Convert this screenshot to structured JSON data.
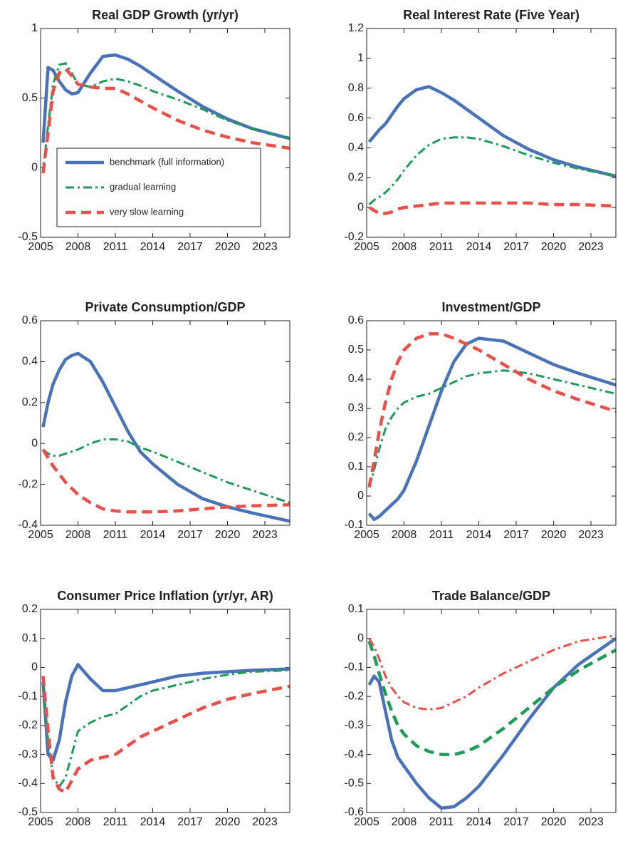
{
  "chart_data": [
    {
      "type": "line",
      "title": "Real GDP Growth (yr/yr)",
      "legend": "lower left",
      "x": [
        2005.2,
        2005.6,
        2006,
        2006.5,
        2007,
        2007.5,
        2008,
        2009,
        2010,
        2011,
        2012,
        2013,
        2014,
        2016,
        2018,
        2020,
        2022,
        2025
      ],
      "xlim": [
        2005,
        2025
      ],
      "xticks": [
        2005,
        2008,
        2011,
        2014,
        2017,
        2020,
        2023
      ],
      "ylim": [
        -0.5,
        1
      ],
      "yticks": [
        -0.5,
        0,
        0.5,
        1
      ],
      "series": [
        {
          "name": "benchmark (full information)",
          "color": "#4a72b8",
          "dash": "solid",
          "values": [
            0.18,
            0.72,
            0.7,
            0.62,
            0.56,
            0.53,
            0.54,
            0.68,
            0.8,
            0.81,
            0.78,
            0.73,
            0.67,
            0.55,
            0.44,
            0.35,
            0.28,
            0.21
          ]
        },
        {
          "name": "gradual learning",
          "color": "#1f9a5a",
          "dash": "dashdot",
          "values": [
            -0.02,
            0.3,
            0.6,
            0.74,
            0.75,
            0.68,
            0.6,
            0.58,
            0.62,
            0.64,
            0.62,
            0.59,
            0.55,
            0.49,
            0.42,
            0.34,
            0.28,
            0.21
          ]
        },
        {
          "name": "very slow learning",
          "color": "#e8504a",
          "dash": "dashed",
          "values": [
            -0.04,
            0.25,
            0.55,
            0.68,
            0.71,
            0.66,
            0.6,
            0.58,
            0.57,
            0.57,
            0.53,
            0.48,
            0.43,
            0.34,
            0.27,
            0.22,
            0.18,
            0.14
          ]
        }
      ]
    },
    {
      "type": "line",
      "title": "Real Interest Rate (Five Year)",
      "x": [
        2005.2,
        2005.6,
        2006,
        2006.5,
        2007,
        2007.5,
        2008,
        2009,
        2010,
        2011,
        2012,
        2013,
        2014,
        2016,
        2018,
        2020,
        2022,
        2025
      ],
      "xlim": [
        2005,
        2025
      ],
      "xticks": [
        2005,
        2008,
        2011,
        2014,
        2017,
        2020,
        2023
      ],
      "ylim": [
        -0.2,
        1.2
      ],
      "yticks": [
        -0.2,
        0,
        0.2,
        0.4,
        0.6,
        0.8,
        1,
        1.2
      ],
      "series": [
        {
          "color": "#4a72b8",
          "dash": "solid",
          "values": [
            0.44,
            0.48,
            0.52,
            0.56,
            0.62,
            0.68,
            0.73,
            0.79,
            0.81,
            0.77,
            0.72,
            0.66,
            0.6,
            0.48,
            0.39,
            0.32,
            0.27,
            0.21
          ]
        },
        {
          "color": "#1f9a5a",
          "dash": "dashdot",
          "values": [
            0.02,
            0.05,
            0.07,
            0.1,
            0.14,
            0.19,
            0.25,
            0.35,
            0.42,
            0.46,
            0.47,
            0.47,
            0.46,
            0.41,
            0.35,
            0.3,
            0.26,
            0.21
          ]
        },
        {
          "color": "#e8504a",
          "dash": "dashed",
          "values": [
            0,
            -0.02,
            -0.04,
            -0.04,
            -0.03,
            -0.01,
            0,
            0.01,
            0.02,
            0.03,
            0.03,
            0.03,
            0.03,
            0.03,
            0.03,
            0.02,
            0.02,
            0.01
          ]
        }
      ]
    },
    {
      "type": "line",
      "title": "Private Consumption/GDP",
      "x": [
        2005.2,
        2005.6,
        2006,
        2006.5,
        2007,
        2007.5,
        2008,
        2009,
        2010,
        2011,
        2012,
        2013,
        2014,
        2016,
        2018,
        2020,
        2022,
        2025
      ],
      "xlim": [
        2005,
        2025
      ],
      "xticks": [
        2005,
        2008,
        2011,
        2014,
        2017,
        2020,
        2023
      ],
      "ylim": [
        -0.4,
        0.6
      ],
      "yticks": [
        -0.4,
        -0.2,
        0,
        0.2,
        0.4,
        0.6
      ],
      "series": [
        {
          "color": "#4a72b8",
          "dash": "solid",
          "values": [
            0.08,
            0.2,
            0.29,
            0.36,
            0.41,
            0.43,
            0.44,
            0.4,
            0.3,
            0.18,
            0.06,
            -0.04,
            -0.1,
            -0.2,
            -0.27,
            -0.31,
            -0.34,
            -0.38
          ]
        },
        {
          "color": "#1f9a5a",
          "dash": "dashdot",
          "values": [
            -0.03,
            -0.05,
            -0.06,
            -0.06,
            -0.05,
            -0.04,
            -0.03,
            0,
            0.02,
            0.02,
            0.01,
            -0.02,
            -0.04,
            -0.09,
            -0.14,
            -0.19,
            -0.23,
            -0.29
          ]
        },
        {
          "color": "#e8504a",
          "dash": "dashed",
          "values": [
            -0.03,
            -0.07,
            -0.11,
            -0.15,
            -0.19,
            -0.22,
            -0.25,
            -0.29,
            -0.32,
            -0.33,
            -0.335,
            -0.335,
            -0.335,
            -0.33,
            -0.32,
            -0.31,
            -0.305,
            -0.3
          ]
        }
      ]
    },
    {
      "type": "line",
      "title": "Investment/GDP",
      "x": [
        2005.2,
        2005.6,
        2006,
        2006.5,
        2007,
        2007.5,
        2008,
        2009,
        2010,
        2011,
        2012,
        2013,
        2014,
        2016,
        2018,
        2020,
        2022,
        2025
      ],
      "xlim": [
        2005,
        2025
      ],
      "xticks": [
        2005,
        2008,
        2011,
        2014,
        2017,
        2020,
        2023
      ],
      "ylim": [
        -0.1,
        0.6
      ],
      "yticks": [
        -0.1,
        0,
        0.1,
        0.2,
        0.3,
        0.4,
        0.5,
        0.6
      ],
      "series": [
        {
          "color": "#4a72b8",
          "dash": "solid",
          "values": [
            -0.06,
            -0.08,
            -0.07,
            -0.05,
            -0.03,
            -0.01,
            0.02,
            0.12,
            0.24,
            0.36,
            0.46,
            0.52,
            0.54,
            0.53,
            0.49,
            0.45,
            0.42,
            0.38
          ]
        },
        {
          "color": "#1f9a5a",
          "dash": "dashdot",
          "values": [
            0.03,
            0.09,
            0.16,
            0.23,
            0.27,
            0.3,
            0.32,
            0.34,
            0.35,
            0.37,
            0.39,
            0.41,
            0.42,
            0.43,
            0.42,
            0.4,
            0.38,
            0.35
          ]
        },
        {
          "color": "#e8504a",
          "dash": "dashed",
          "values": [
            0.03,
            0.12,
            0.22,
            0.32,
            0.4,
            0.46,
            0.5,
            0.54,
            0.555,
            0.555,
            0.54,
            0.52,
            0.5,
            0.45,
            0.4,
            0.36,
            0.33,
            0.29
          ]
        }
      ]
    },
    {
      "type": "line",
      "title": "Consumer Price Inflation (yr/yr, AR)",
      "x": [
        2005.2,
        2005.6,
        2006,
        2006.5,
        2007,
        2007.5,
        2008,
        2009,
        2010,
        2011,
        2012,
        2013,
        2014,
        2016,
        2018,
        2020,
        2022,
        2025
      ],
      "xlim": [
        2005,
        2025
      ],
      "xticks": [
        2005,
        2008,
        2011,
        2014,
        2017,
        2020,
        2023
      ],
      "ylim": [
        -0.5,
        0.2
      ],
      "yticks": [
        -0.5,
        -0.4,
        -0.3,
        -0.2,
        -0.1,
        0,
        0.1,
        0.2
      ],
      "series": [
        {
          "color": "#4a72b8",
          "dash": "solid",
          "values": [
            -0.05,
            -0.3,
            -0.32,
            -0.25,
            -0.12,
            -0.03,
            0.01,
            -0.04,
            -0.08,
            -0.08,
            -0.07,
            -0.06,
            -0.05,
            -0.03,
            -0.02,
            -0.015,
            -0.01,
            -0.005
          ]
        },
        {
          "color": "#1f9a5a",
          "dash": "dashdot",
          "values": [
            -0.05,
            -0.25,
            -0.38,
            -0.41,
            -0.38,
            -0.3,
            -0.22,
            -0.19,
            -0.17,
            -0.16,
            -0.13,
            -0.1,
            -0.08,
            -0.06,
            -0.04,
            -0.025,
            -0.015,
            -0.01
          ]
        },
        {
          "color": "#e8504a",
          "dash": "dashed",
          "values": [
            -0.03,
            -0.22,
            -0.38,
            -0.42,
            -0.43,
            -0.39,
            -0.35,
            -0.32,
            -0.31,
            -0.3,
            -0.27,
            -0.24,
            -0.22,
            -0.18,
            -0.14,
            -0.11,
            -0.09,
            -0.065
          ]
        }
      ]
    },
    {
      "type": "line",
      "title": "Trade Balance/GDP",
      "x": [
        2005.2,
        2005.6,
        2006,
        2006.5,
        2007,
        2007.5,
        2008,
        2009,
        2010,
        2011,
        2012,
        2013,
        2014,
        2016,
        2018,
        2020,
        2022,
        2025
      ],
      "xlim": [
        2005,
        2025
      ],
      "xticks": [
        2005,
        2008,
        2011,
        2014,
        2017,
        2020,
        2023
      ],
      "ylim": [
        -0.6,
        0.1
      ],
      "yticks": [
        -0.6,
        -0.5,
        -0.4,
        -0.3,
        -0.2,
        -0.1,
        0,
        0.1
      ],
      "series": [
        {
          "color": "#4a72b8",
          "dash": "solid",
          "values": [
            -0.16,
            -0.13,
            -0.15,
            -0.25,
            -0.35,
            -0.41,
            -0.44,
            -0.5,
            -0.55,
            -0.585,
            -0.58,
            -0.55,
            -0.51,
            -0.4,
            -0.28,
            -0.17,
            -0.09,
            0
          ]
        },
        {
          "color": "#1f9a5a",
          "dash": "dashed",
          "values": [
            -0.01,
            -0.06,
            -0.12,
            -0.19,
            -0.25,
            -0.3,
            -0.33,
            -0.37,
            -0.39,
            -0.4,
            -0.4,
            -0.39,
            -0.37,
            -0.31,
            -0.24,
            -0.17,
            -0.11,
            -0.04
          ]
        },
        {
          "color": "#e8504a",
          "dash": "dashdot",
          "values": [
            0,
            -0.03,
            -0.07,
            -0.13,
            -0.17,
            -0.2,
            -0.22,
            -0.24,
            -0.245,
            -0.24,
            -0.22,
            -0.2,
            -0.17,
            -0.12,
            -0.08,
            -0.04,
            -0.01,
            0.01
          ]
        }
      ]
    }
  ]
}
